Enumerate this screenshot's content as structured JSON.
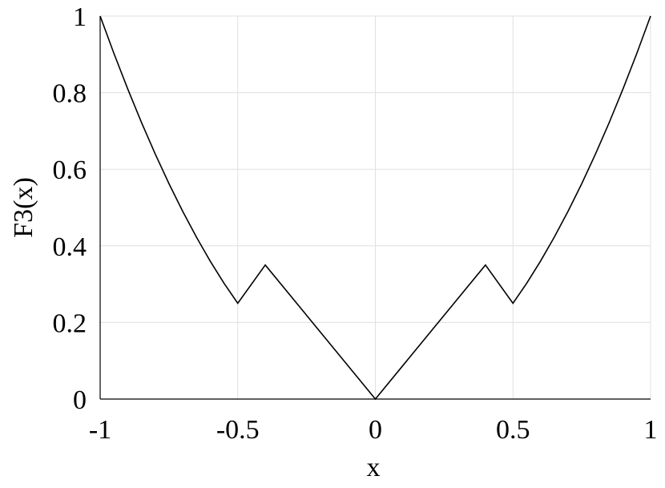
{
  "chart_data": {
    "type": "line",
    "xlabel": "x",
    "ylabel": "F3(x)",
    "x": [
      -1,
      -0.95,
      -0.9,
      -0.85,
      -0.8,
      -0.75,
      -0.7,
      -0.65,
      -0.6,
      -0.55,
      -0.5,
      -0.4,
      0,
      0.4,
      0.5,
      0.55,
      0.6,
      0.65,
      0.7,
      0.75,
      0.8,
      0.85,
      0.9,
      0.95,
      1
    ],
    "series": [
      {
        "name": "F3(x)",
        "color": "#000000",
        "values": [
          1,
          0.9025,
          0.81,
          0.7225,
          0.64,
          0.5625,
          0.49,
          0.4225,
          0.36,
          0.3025,
          0.25,
          0.35,
          0,
          0.35,
          0.25,
          0.3025,
          0.36,
          0.4225,
          0.49,
          0.5625,
          0.64,
          0.7225,
          0.81,
          0.9025,
          1
        ]
      }
    ],
    "xlim": [
      -1,
      1
    ],
    "ylim": [
      0,
      1
    ],
    "xticks": [
      -1,
      -0.5,
      0,
      0.5,
      1
    ],
    "yticks": [
      0,
      0.2,
      0.4,
      0.6,
      0.8,
      1
    ],
    "grid": true
  }
}
